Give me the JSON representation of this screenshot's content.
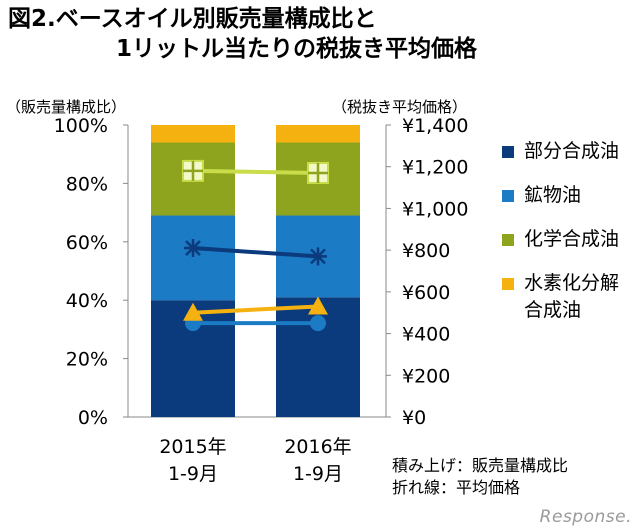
{
  "title": {
    "line1": "図2.ベースオイル別販売量構成比と",
    "line2": "1リットル当たりの税抜き平均価格"
  },
  "watermark": "Response.",
  "note": {
    "line1": "積み上げ：販売量構成比",
    "line2": "折れ線：平均価格"
  },
  "chart_data": {
    "type": "bar",
    "stacked": true,
    "title": "ベースオイル別販売量構成比と1リットル当たりの税抜き平均価格",
    "categories": [
      [
        "2015年",
        "1-9月"
      ],
      [
        "2016年",
        "1-9月"
      ]
    ],
    "ylabel": "（販売量構成比）",
    "ylim": [
      0,
      100
    ],
    "y_ticks": [
      "0%",
      "20%",
      "40%",
      "60%",
      "80%",
      "100%"
    ],
    "y2label": "（税抜き平均価格）",
    "y2lim": [
      0,
      1400
    ],
    "y2_ticks": [
      "¥0",
      "¥200",
      "¥400",
      "¥600",
      "¥800",
      "¥1,000",
      "¥1,200",
      "¥1,400"
    ],
    "series": [
      {
        "name": "部分合成油",
        "color": "#0b3a7d",
        "values": [
          40,
          41
        ],
        "price": [
          450,
          450
        ],
        "marker": "circle"
      },
      {
        "name": "鉱物油",
        "color": "#1b7bc4",
        "values": [
          29,
          28
        ],
        "price": [
          810,
          770
        ],
        "marker": "star"
      },
      {
        "name": "化学合成油",
        "color": "#8ea31e",
        "values": [
          25,
          25
        ],
        "price": [
          1180,
          1170
        ],
        "marker": "square-plus"
      },
      {
        "name": "水素化分解合成油",
        "legend_lines": [
          "水素化分解",
          "合成油"
        ],
        "color": "#f5b10f",
        "values": [
          6,
          6
        ],
        "price": [
          500,
          530
        ],
        "marker": "triangle"
      }
    ]
  }
}
